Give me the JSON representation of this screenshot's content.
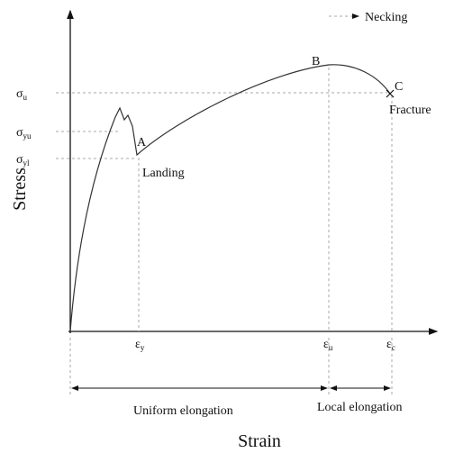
{
  "axes": {
    "y_label": "Stress",
    "x_label": "Strain"
  },
  "points": {
    "a": "A",
    "b": "B",
    "c": "C"
  },
  "annotations": {
    "necking": "Necking",
    "landing": "Landing",
    "fracture": "Fracture"
  },
  "stress_levels": [
    {
      "symbol": "σ",
      "sub": "u"
    },
    {
      "symbol": "σ",
      "sub": "yu"
    },
    {
      "symbol": "σ",
      "sub": "yl"
    }
  ],
  "strain_levels": [
    {
      "symbol": "ε",
      "sub": "y"
    },
    {
      "symbol": "ε",
      "sub": "u"
    },
    {
      "symbol": "ε",
      "sub": "c"
    }
  ],
  "ranges": {
    "uniform": "Uniform elongation",
    "local": "Local elongation"
  }
}
